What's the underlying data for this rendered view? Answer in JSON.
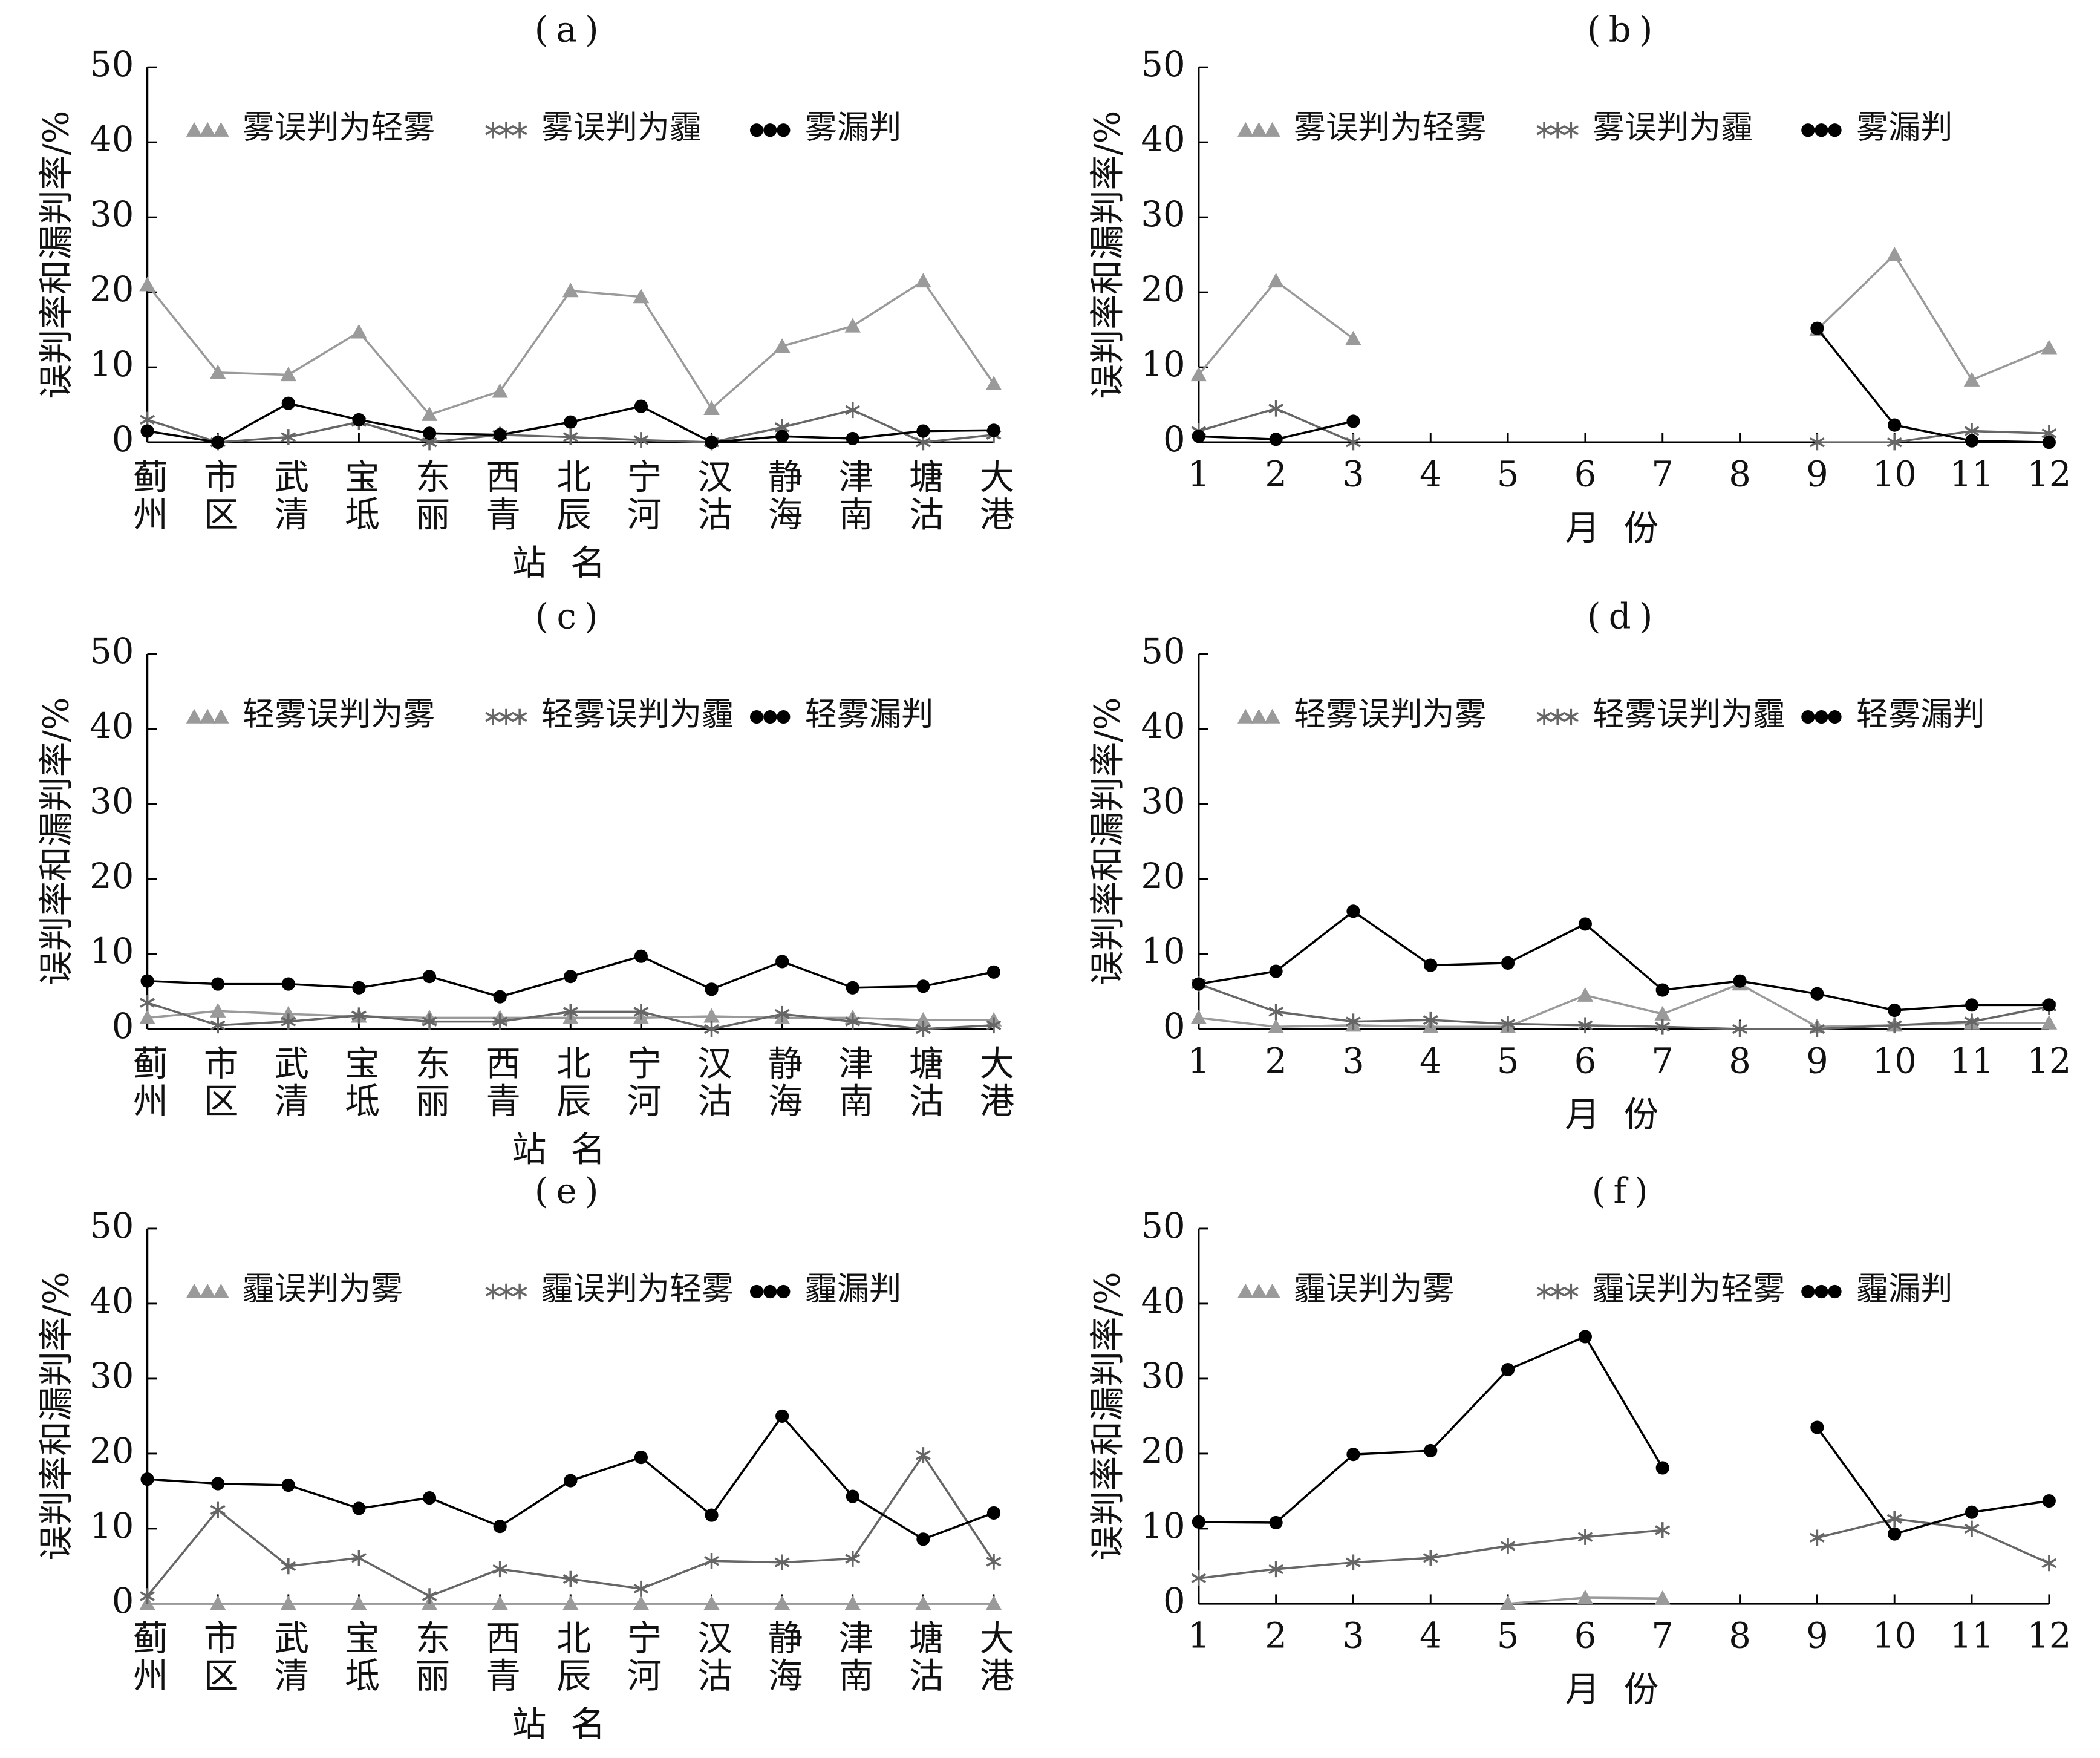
{
  "chart_data": [
    {
      "type": "line",
      "title": "(a)",
      "xlabel": "站名",
      "ylabel": "误判率和漏判率/%",
      "categories": [
        "蓟州",
        "市区",
        "武清",
        "宝坻",
        "东丽",
        "西青",
        "北辰",
        "宁河",
        "汉沽",
        "静海",
        "津南",
        "塘沽",
        "大港"
      ],
      "ylim": [
        0,
        50
      ],
      "yticks": [
        0,
        10,
        20,
        30,
        40,
        50
      ],
      "series": [
        {
          "name": "雾误判为轻雾",
          "color": "#9a9a9a",
          "marker": "triangle",
          "values": [
            21,
            9.3,
            9,
            14.7,
            3.7,
            6.8,
            20.2,
            19.4,
            4.5,
            12.8,
            15.5,
            21.5,
            7.8
          ]
        },
        {
          "name": "雾误判为霾",
          "color": "#666666",
          "marker": "star",
          "values": [
            3,
            0,
            0.7,
            2.7,
            0,
            1,
            0.7,
            0.3,
            0,
            2,
            4.3,
            0,
            1
          ]
        },
        {
          "name": "雾漏判",
          "color": "#000000",
          "marker": "dot",
          "values": [
            1.5,
            0,
            5.2,
            3,
            1.2,
            1,
            2.7,
            4.8,
            0,
            0.8,
            0.5,
            1.5,
            1.6
          ]
        }
      ]
    },
    {
      "type": "line",
      "title": "(b)",
      "xlabel": "月份",
      "ylabel": "误判率和漏判率/%",
      "x": [
        1,
        2,
        3,
        4,
        5,
        6,
        7,
        8,
        9,
        10,
        11,
        12
      ],
      "xlim": [
        1,
        12
      ],
      "xticks": [
        1,
        2,
        3,
        4,
        5,
        6,
        7,
        8,
        9,
        10,
        11,
        12
      ],
      "ylim": [
        0,
        50
      ],
      "yticks": [
        0,
        10,
        20,
        30,
        40,
        50
      ],
      "series": [
        {
          "name": "雾误判为轻雾",
          "color": "#9a9a9a",
          "marker": "triangle",
          "values": [
            9,
            21.5,
            13.8,
            null,
            null,
            null,
            null,
            null,
            15,
            25,
            8.3,
            12.6
          ]
        },
        {
          "name": "雾误判为霾",
          "color": "#666666",
          "marker": "star",
          "values": [
            1.5,
            4.5,
            0,
            null,
            null,
            null,
            null,
            null,
            0,
            0,
            1.5,
            1.2
          ]
        },
        {
          "name": "雾漏判",
          "color": "#000000",
          "marker": "dot",
          "values": [
            0.8,
            0.4,
            2.8,
            null,
            null,
            null,
            null,
            null,
            15.2,
            2.3,
            0.2,
            0
          ]
        }
      ]
    },
    {
      "type": "line",
      "title": "(c)",
      "xlabel": "站名",
      "ylabel": "误判率和漏判率/%",
      "categories": [
        "蓟州",
        "市区",
        "武清",
        "宝坻",
        "东丽",
        "西青",
        "北辰",
        "宁河",
        "汉沽",
        "静海",
        "津南",
        "塘沽",
        "大港"
      ],
      "ylim": [
        0,
        50
      ],
      "yticks": [
        0,
        10,
        20,
        30,
        40,
        50
      ],
      "series": [
        {
          "name": "轻雾误判为雾",
          "color": "#9a9a9a",
          "marker": "triangle",
          "values": [
            1.5,
            2.4,
            2,
            1.7,
            1.5,
            1.5,
            1.5,
            1.5,
            1.7,
            1.5,
            1.5,
            1.2,
            1.2
          ]
        },
        {
          "name": "轻雾误判为霾",
          "color": "#666666",
          "marker": "star",
          "values": [
            3.5,
            0.5,
            1,
            1.8,
            1,
            1,
            2.3,
            2.3,
            0,
            2,
            1,
            0,
            0.5
          ]
        },
        {
          "name": "轻雾漏判",
          "color": "#000000",
          "marker": "dot",
          "values": [
            6.4,
            6,
            6,
            5.5,
            7,
            4.3,
            7,
            9.7,
            5.3,
            9,
            5.5,
            5.7,
            7.6
          ]
        }
      ]
    },
    {
      "type": "line",
      "title": "(d)",
      "xlabel": "月份",
      "ylabel": "误判率和漏判率/%",
      "x": [
        1,
        2,
        3,
        4,
        5,
        6,
        7,
        8,
        9,
        10,
        11,
        12
      ],
      "xlim": [
        1,
        12
      ],
      "xticks": [
        1,
        2,
        3,
        4,
        5,
        6,
        7,
        8,
        9,
        10,
        11,
        12
      ],
      "ylim": [
        0,
        50
      ],
      "yticks": [
        0,
        10,
        20,
        30,
        40,
        50
      ],
      "series": [
        {
          "name": "轻雾误判为雾",
          "color": "#9a9a9a",
          "marker": "triangle",
          "values": [
            1.5,
            0.3,
            0.5,
            0.3,
            0.3,
            4.5,
            2,
            6,
            0.3,
            0.5,
            0.8,
            0.8
          ]
        },
        {
          "name": "轻雾误判为霾",
          "color": "#666666",
          "marker": "star",
          "values": [
            6,
            2.3,
            1,
            1.2,
            0.7,
            0.5,
            0.3,
            0,
            0,
            0.5,
            1,
            3
          ]
        },
        {
          "name": "轻雾漏判",
          "color": "#000000",
          "marker": "dot",
          "values": [
            6,
            7.7,
            15.7,
            8.5,
            8.8,
            14,
            5.2,
            6.4,
            4.7,
            2.5,
            3.2,
            3.2
          ]
        }
      ]
    },
    {
      "type": "line",
      "title": "(e)",
      "xlabel": "站名",
      "ylabel": "误判率和漏判率/%",
      "categories": [
        "蓟州",
        "市区",
        "武清",
        "宝坻",
        "东丽",
        "西青",
        "北辰",
        "宁河",
        "汉沽",
        "静海",
        "津南",
        "塘沽",
        "大港"
      ],
      "ylim": [
        0,
        50
      ],
      "yticks": [
        0,
        10,
        20,
        30,
        40,
        50
      ],
      "series": [
        {
          "name": "霾误判为雾",
          "color": "#9a9a9a",
          "marker": "triangle",
          "values": [
            0,
            0,
            0,
            0,
            0,
            0,
            0,
            0,
            0,
            0,
            0,
            0,
            0
          ]
        },
        {
          "name": "霾误判为轻雾",
          "color": "#666666",
          "marker": "star",
          "values": [
            1,
            12.5,
            5,
            6.1,
            1,
            4.6,
            3.3,
            2,
            5.7,
            5.5,
            6,
            19.8,
            5.6
          ]
        },
        {
          "name": "霾漏判",
          "color": "#000000",
          "marker": "dot",
          "values": [
            16.6,
            16,
            15.8,
            12.7,
            14.1,
            10.3,
            16.4,
            19.5,
            11.8,
            25,
            14.3,
            8.6,
            12.1
          ]
        }
      ]
    },
    {
      "type": "line",
      "title": "(f)",
      "xlabel": "月份",
      "ylabel": "误判率和漏判率/%",
      "x": [
        1,
        2,
        3,
        4,
        5,
        6,
        7,
        8,
        9,
        10,
        11,
        12
      ],
      "xlim": [
        1,
        12
      ],
      "xticks": [
        1,
        2,
        3,
        4,
        5,
        6,
        7,
        8,
        9,
        10,
        11,
        12
      ],
      "ylim": [
        0,
        50
      ],
      "yticks": [
        0,
        10,
        20,
        30,
        40,
        50
      ],
      "series": [
        {
          "name": "霾误判为雾",
          "color": "#9a9a9a",
          "marker": "triangle",
          "values": [
            null,
            null,
            null,
            null,
            0,
            0.8,
            0.7,
            null,
            null,
            null,
            null,
            null
          ]
        },
        {
          "name": "霾误判为轻雾",
          "color": "#666666",
          "marker": "star",
          "values": [
            3.4,
            4.6,
            5.5,
            6.1,
            7.7,
            8.9,
            9.8,
            null,
            8.8,
            11.3,
            10,
            5.4
          ]
        },
        {
          "name": "霾漏判",
          "color": "#000000",
          "marker": "dot",
          "values": [
            10.9,
            10.8,
            19.9,
            20.4,
            31.2,
            35.6,
            18.1,
            null,
            23.5,
            9.3,
            12.2,
            13.7
          ]
        }
      ]
    }
  ]
}
